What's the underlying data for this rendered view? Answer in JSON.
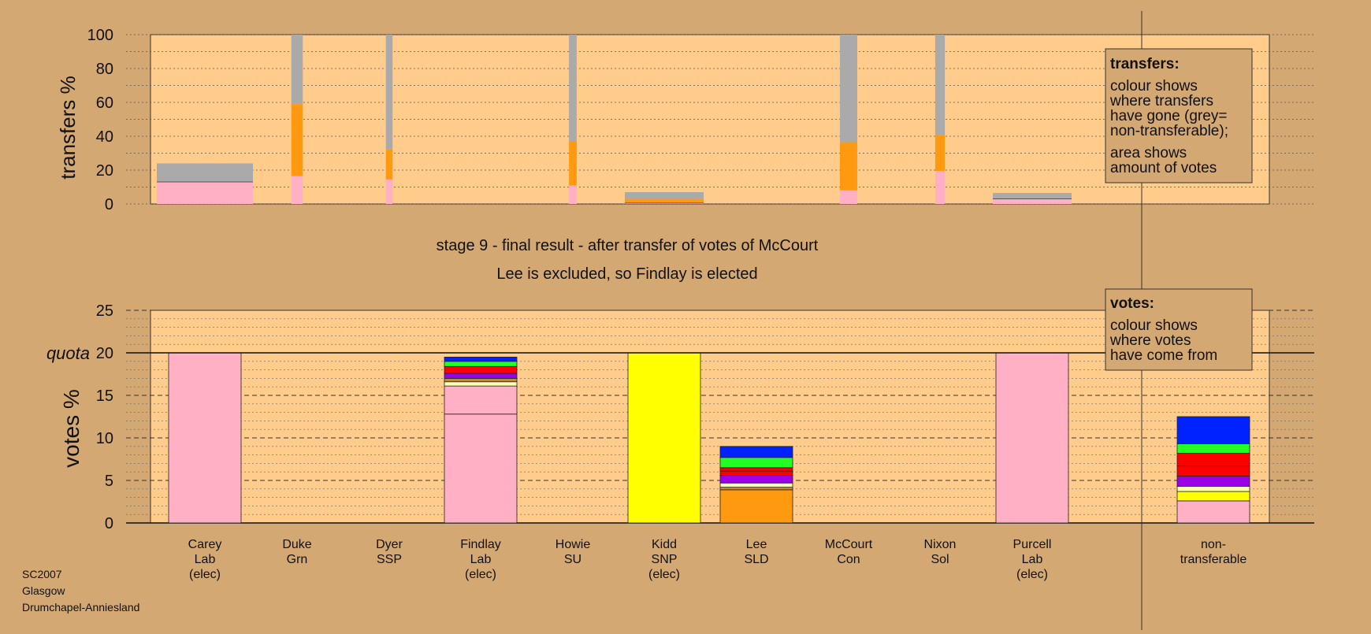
{
  "colors": {
    "background": "#d4a873",
    "plot_bg": "#ffcc8c",
    "pink": "#ffb0c4",
    "orange": "#ff9a10",
    "grey": "#aaaaaa",
    "yellow": "#ffff00",
    "purple": "#9b00e8",
    "red": "#ff0000",
    "green": "#22ff22",
    "blue": "#0022ff",
    "cream": "#ffffb0",
    "brown": "#cc8822"
  },
  "titles": {
    "stage": "stage 9 - final result - after transfer of votes of McCourt",
    "result": "Lee is excluded, so Findlay is elected"
  },
  "footer": {
    "line1": "SC2007",
    "line2": "Glasgow",
    "line3": "Drumchapel-Anniesland"
  },
  "legend_transfers": {
    "heading": "transfers:",
    "lines": [
      "colour shows",
      "where transfers",
      "have gone (grey=",
      "non-transferable);",
      "area shows",
      "amount of votes"
    ]
  },
  "legend_votes": {
    "heading": "votes:",
    "lines": [
      "colour shows",
      "where votes",
      "have come from"
    ]
  },
  "candidates": [
    {
      "name": "Carey",
      "party": "Lab",
      "status": "(elec)"
    },
    {
      "name": "Duke",
      "party": "Grn",
      "status": ""
    },
    {
      "name": "Dyer",
      "party": "SSP",
      "status": ""
    },
    {
      "name": "Findlay",
      "party": "Lab",
      "status": "(elec)"
    },
    {
      "name": "Howie",
      "party": "SU",
      "status": ""
    },
    {
      "name": "Kidd",
      "party": "SNP",
      "status": "(elec)"
    },
    {
      "name": "Lee",
      "party": "SLD",
      "status": ""
    },
    {
      "name": "McCourt",
      "party": "Con",
      "status": ""
    },
    {
      "name": "Nixon",
      "party": "Sol",
      "status": ""
    },
    {
      "name": "Purcell",
      "party": "Lab",
      "status": "(elec)"
    },
    {
      "name": "non-",
      "party": "transferable",
      "status": ""
    }
  ],
  "chart_data": [
    {
      "type": "bar",
      "subtype": "stacked-variable-width",
      "ylabel": "transfers %",
      "ylim": [
        0,
        100
      ],
      "yticks": [
        0,
        20,
        40,
        60,
        80,
        100
      ],
      "note": "transfers made in earlier stages; bar width is proportional to amount of votes transferred",
      "bars": [
        {
          "label": "Carey",
          "width_share": 1.0,
          "segments": [
            {
              "color": "pink",
              "value": 13
            },
            {
              "color": "grey",
              "value": 11
            }
          ]
        },
        {
          "label": "Duke",
          "width_share": 0.12,
          "segments": [
            {
              "color": "pink",
              "value": 16.5
            },
            {
              "color": "orange",
              "value": 42.5
            },
            {
              "color": "grey",
              "value": 41
            }
          ]
        },
        {
          "label": "Dyer",
          "width_share": 0.07,
          "segments": [
            {
              "color": "pink",
              "value": 14.5
            },
            {
              "color": "orange",
              "value": 18
            },
            {
              "color": "grey",
              "value": 67.5
            }
          ]
        },
        {
          "label": "Howie",
          "width_share": 0.08,
          "segments": [
            {
              "color": "pink",
              "value": 11
            },
            {
              "color": "orange",
              "value": 26
            },
            {
              "color": "grey",
              "value": 63
            }
          ]
        },
        {
          "label": "Kidd",
          "width_share": 0.82,
          "segments": [
            {
              "color": "pink",
              "value": 0.5
            },
            {
              "color": "orange",
              "value": 2.5
            },
            {
              "color": "grey",
              "value": 4
            }
          ]
        },
        {
          "label": "McCourt",
          "width_share": 0.18,
          "segments": [
            {
              "color": "pink",
              "value": 8
            },
            {
              "color": "orange",
              "value": 28.5
            },
            {
              "color": "grey",
              "value": 63.5
            }
          ]
        },
        {
          "label": "Nixon",
          "width_share": 0.1,
          "segments": [
            {
              "color": "pink",
              "value": 19.5
            },
            {
              "color": "orange",
              "value": 21
            },
            {
              "color": "grey",
              "value": 59.5
            }
          ]
        },
        {
          "label": "Purcell",
          "width_share": 0.82,
          "segments": [
            {
              "color": "pink",
              "value": 3
            },
            {
              "color": "orange",
              "value": 0.5
            },
            {
              "color": "grey",
              "value": 3
            }
          ]
        }
      ]
    },
    {
      "type": "bar",
      "subtype": "stacked",
      "ylabel": "votes %",
      "ylim": [
        0,
        25
      ],
      "yticks": [
        0,
        5,
        10,
        15,
        20,
        25
      ],
      "quota": 20,
      "quota_label": "quota",
      "bars": [
        {
          "label": "Carey",
          "segments": [
            {
              "color": "pink",
              "value": 20
            }
          ]
        },
        {
          "label": "Duke",
          "segments": []
        },
        {
          "label": "Dyer",
          "segments": []
        },
        {
          "label": "Findlay",
          "segments": [
            {
              "color": "pink",
              "value": 12.8
            },
            {
              "color": "pink",
              "value": 3.3
            },
            {
              "color": "cream",
              "value": 0.5
            },
            {
              "color": "brown",
              "value": 0.4
            },
            {
              "color": "purple",
              "value": 0.6
            },
            {
              "color": "red",
              "value": 0.8
            },
            {
              "color": "green",
              "value": 0.6
            },
            {
              "color": "blue",
              "value": 0.5
            }
          ]
        },
        {
          "label": "Howie",
          "segments": []
        },
        {
          "label": "Kidd",
          "segments": [
            {
              "color": "yellow",
              "value": 20
            }
          ]
        },
        {
          "label": "Lee",
          "segments": [
            {
              "color": "orange",
              "value": 3.9
            },
            {
              "color": "brown",
              "value": 0.3
            },
            {
              "color": "cream",
              "value": 0.5
            },
            {
              "color": "purple",
              "value": 0.9
            },
            {
              "color": "red",
              "value": 0.5
            },
            {
              "color": "red",
              "value": 0.4
            },
            {
              "color": "green",
              "value": 1.2
            },
            {
              "color": "blue",
              "value": 1.3
            }
          ]
        },
        {
          "label": "McCourt",
          "segments": []
        },
        {
          "label": "Nixon",
          "segments": []
        },
        {
          "label": "Purcell",
          "segments": [
            {
              "color": "pink",
              "value": 20
            }
          ]
        },
        {
          "label": "non-transferable",
          "segments": [
            {
              "color": "pink",
              "value": 2.6
            },
            {
              "color": "yellow",
              "value": 1.1
            },
            {
              "color": "cream",
              "value": 0.6
            },
            {
              "color": "purple",
              "value": 1.2
            },
            {
              "color": "red",
              "value": 1.2
            },
            {
              "color": "red",
              "value": 1.5
            },
            {
              "color": "green",
              "value": 1.1
            },
            {
              "color": "blue",
              "value": 3.2
            }
          ]
        }
      ]
    }
  ]
}
